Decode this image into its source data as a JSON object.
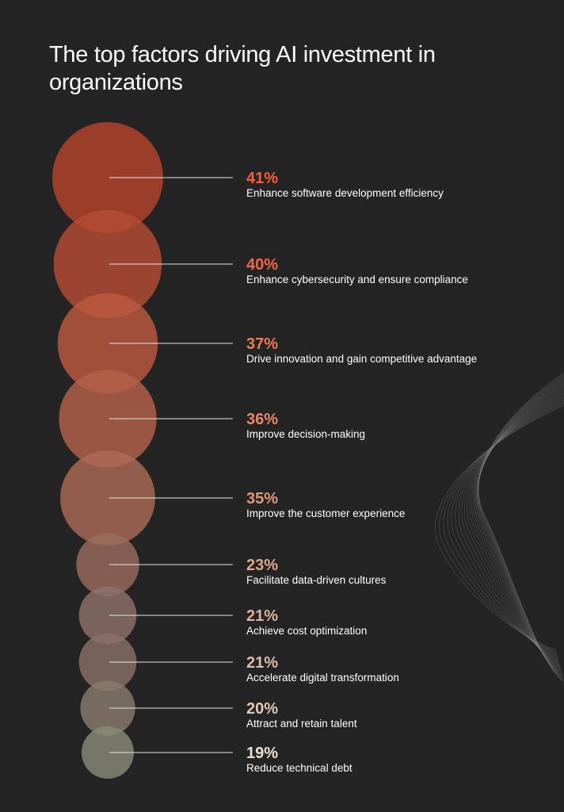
{
  "title": "The top factors driving AI investment in organizations",
  "chart_data": {
    "type": "bubble",
    "title": "The top factors driving AI investment in organizations",
    "unit": "%",
    "categories": [
      "Enhance software development efficiency",
      "Enhance cybersecurity and ensure compliance",
      "Drive innovation and gain competitive advantage",
      "Improve decision-making",
      "Improve the customer experience",
      "Facilitate data-driven cultures",
      "Achieve cost optimization",
      "Accelerate digital transformation",
      "Attract and retain talent",
      "Reduce technical debt"
    ],
    "values": [
      41,
      40,
      37,
      36,
      35,
      23,
      21,
      21,
      20,
      19
    ],
    "value_labels": [
      "41%",
      "40%",
      "37%",
      "36%",
      "35%",
      "23%",
      "21%",
      "21%",
      "20%",
      "19%"
    ],
    "bubble_colors": [
      "#b4432b",
      "#b44c34",
      "#bc5a40",
      "#b4624a",
      "#ac6a55",
      "#9a6c5c",
      "#8e706a",
      "#8a7068",
      "#8a7a6c",
      "#8a8a78"
    ],
    "value_colors": [
      "#ff5a36",
      "#f8643e",
      "#f07a54",
      "#e88866",
      "#e29878",
      "#dca88e",
      "#dcb49e",
      "#dcbca8",
      "#e2c8b6",
      "#ece0d0"
    ],
    "legend": "none",
    "grid": false
  }
}
